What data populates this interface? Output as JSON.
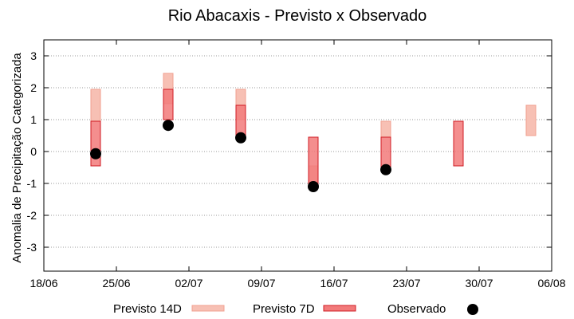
{
  "chart_data": {
    "type": "floating-bar",
    "title": "Rio Abacaxis - Previsto x Observado",
    "ylabel": "Anomalia de Precipitação Categorizada",
    "xlabel": "",
    "ylim": [
      -3.75,
      3.5
    ],
    "yticks": [
      -3,
      -2,
      -1,
      0,
      1,
      2,
      3
    ],
    "xlim": [
      "2024-06-18",
      "2024-08-06"
    ],
    "xticks": [
      {
        "date": "2024-06-18",
        "label": "18/06"
      },
      {
        "date": "2024-06-25",
        "label": "25/06"
      },
      {
        "date": "2024-07-02",
        "label": "02/07"
      },
      {
        "date": "2024-07-09",
        "label": "09/07"
      },
      {
        "date": "2024-07-16",
        "label": "16/07"
      },
      {
        "date": "2024-07-23",
        "label": "23/07"
      },
      {
        "date": "2024-07-30",
        "label": "30/07"
      },
      {
        "date": "2024-08-06",
        "label": "06/08"
      }
    ],
    "grid": "horizontal dotted",
    "legend_position": "bottom",
    "series": [
      {
        "name": "Previsto 14D",
        "kind": "range",
        "color": "#f7c0b4",
        "stroke": "#f0a090",
        "values": [
          {
            "x": "2024-06-23",
            "low": 0.95,
            "high": 1.95
          },
          {
            "x": "2024-06-30",
            "low": 1.5,
            "high": 2.45
          },
          {
            "x": "2024-07-07",
            "low": 1.0,
            "high": 1.95
          },
          {
            "x": "2024-07-14",
            "low": -1.0,
            "high": -0.45
          },
          {
            "x": "2024-07-21",
            "low": 0.45,
            "high": 0.95
          },
          {
            "x": "2024-08-04",
            "low": 0.5,
            "high": 1.45
          }
        ]
      },
      {
        "name": "Previsto 7D",
        "kind": "range",
        "color": "#f27a7a",
        "stroke": "#d01c24",
        "values": [
          {
            "x": "2024-06-23",
            "low": -0.45,
            "high": 0.95
          },
          {
            "x": "2024-06-30",
            "low": 1.0,
            "high": 1.95
          },
          {
            "x": "2024-07-07",
            "low": 0.45,
            "high": 1.45
          },
          {
            "x": "2024-07-14",
            "low": -1.05,
            "high": 0.45
          },
          {
            "x": "2024-07-21",
            "low": -0.5,
            "high": 0.45
          },
          {
            "x": "2024-07-28",
            "low": -0.45,
            "high": 0.95
          }
        ]
      },
      {
        "name": "Observado",
        "kind": "point",
        "color": "#000000",
        "values": [
          {
            "x": "2024-06-23",
            "y": -0.07
          },
          {
            "x": "2024-06-30",
            "y": 0.82
          },
          {
            "x": "2024-07-07",
            "y": 0.43
          },
          {
            "x": "2024-07-14",
            "y": -1.1
          },
          {
            "x": "2024-07-21",
            "y": -0.57
          }
        ]
      }
    ]
  }
}
